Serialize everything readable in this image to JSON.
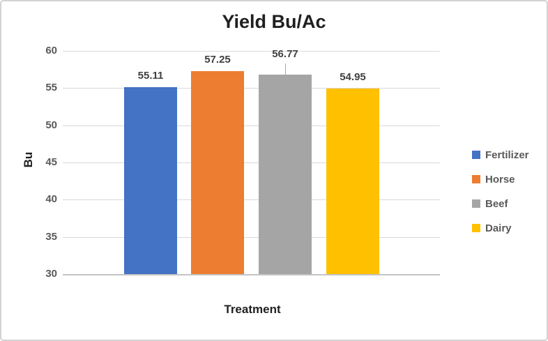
{
  "chart_data": {
    "type": "bar",
    "title": "Yield Bu/Ac",
    "xlabel": "Treatment",
    "ylabel": "Bu",
    "categories": [
      "Fertilizer",
      "Horse",
      "Beef",
      "Dairy"
    ],
    "values": [
      55.11,
      57.25,
      56.77,
      54.95
    ],
    "data_labels": [
      "55.11",
      "57.25",
      "56.77",
      "54.95"
    ],
    "colors": [
      "#4472C4",
      "#ED7D31",
      "#A5A5A5",
      "#FFC000"
    ],
    "ylim": [
      30,
      60
    ],
    "yticks": [
      "60",
      "55",
      "50",
      "45",
      "40",
      "35",
      "30"
    ],
    "grid": true,
    "legend_position": "right",
    "legend": [
      {
        "label": "Fertilizer",
        "color": "#4472C4"
      },
      {
        "label": "Horse",
        "color": "#ED7D31"
      },
      {
        "label": "Beef",
        "color": "#A5A5A5"
      },
      {
        "label": "Dairy",
        "color": "#FFC000"
      }
    ]
  }
}
